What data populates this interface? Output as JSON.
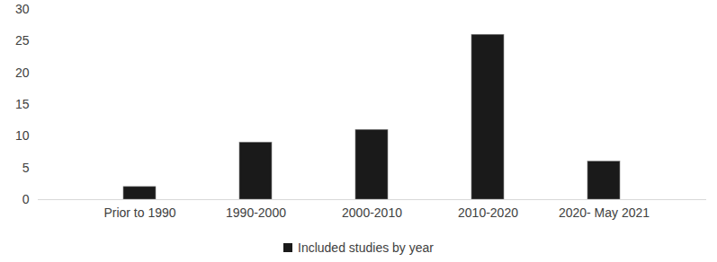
{
  "chart_data": {
    "type": "bar",
    "categories": [
      "Prior to 1990",
      "1990-2000",
      "2000-2010",
      "2010-2020",
      "2020- May 2021"
    ],
    "series": [
      {
        "name": "Included studies by year",
        "color": "#1a1a1a",
        "values": [
          2,
          9,
          11,
          26,
          6
        ]
      }
    ],
    "ylim": [
      0,
      30
    ],
    "yticks": [
      0,
      5,
      10,
      15,
      20,
      25,
      30
    ],
    "grid": false,
    "legend": "bottom"
  }
}
